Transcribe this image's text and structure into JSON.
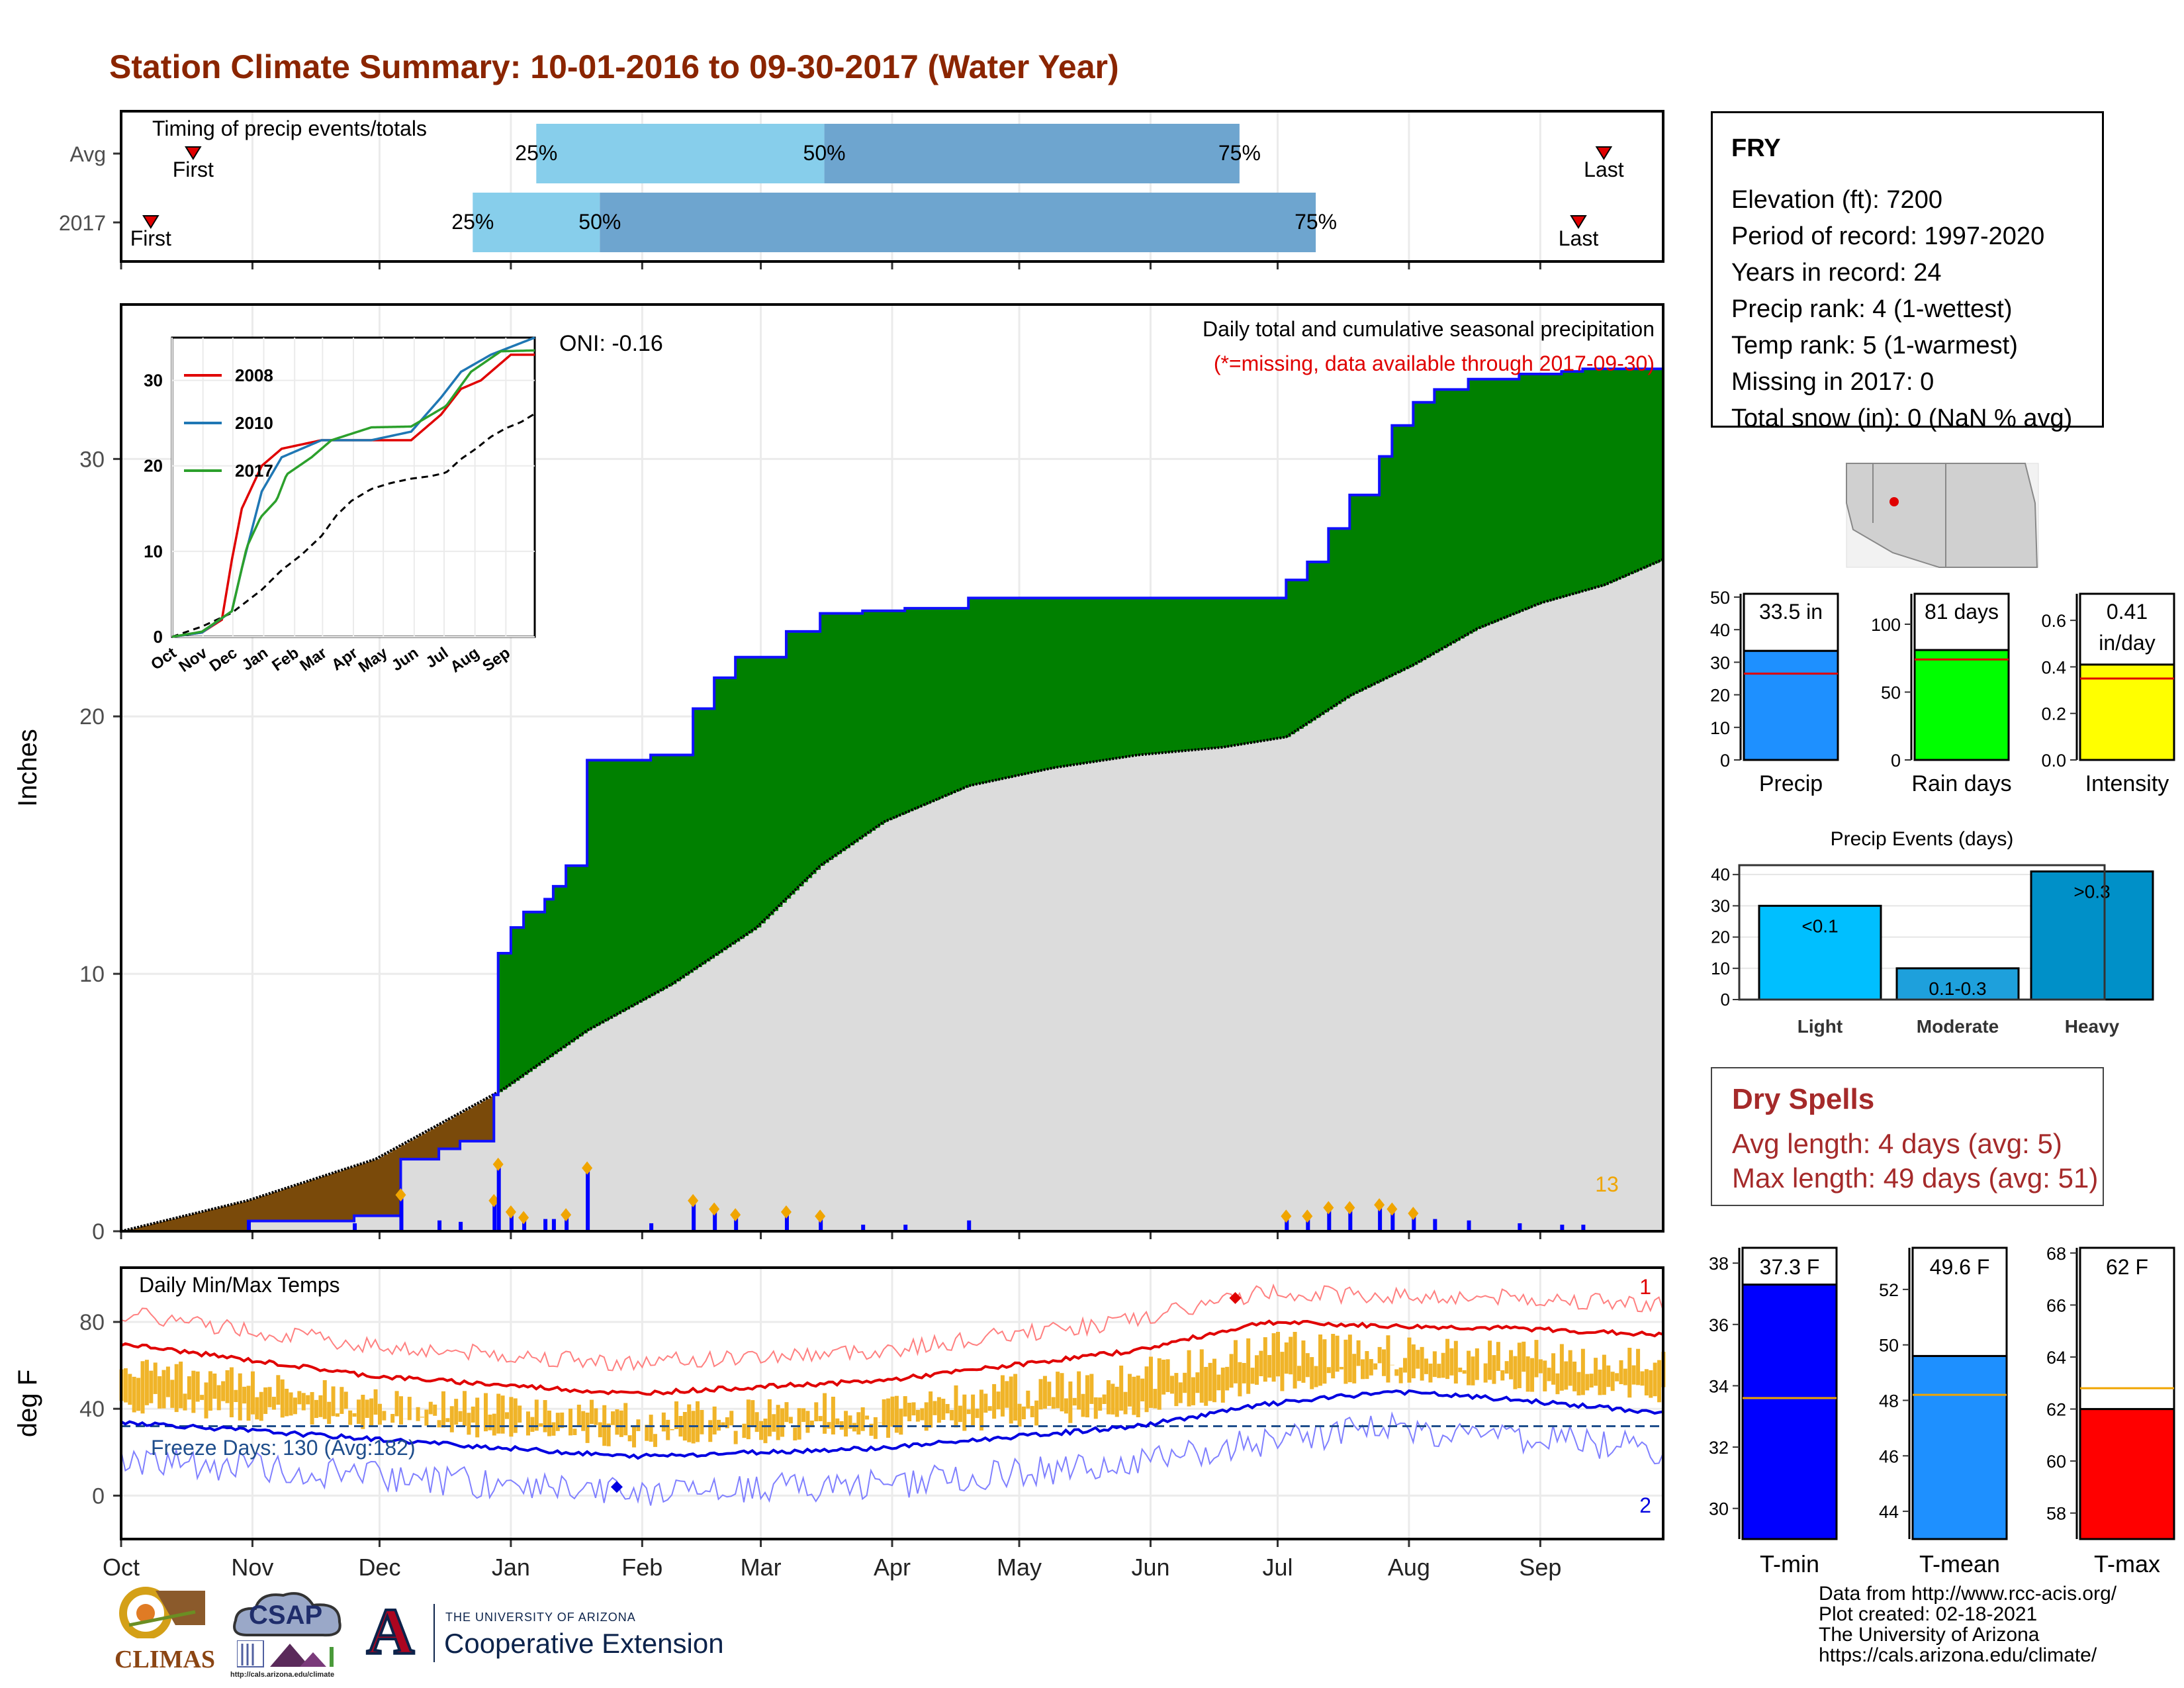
{
  "title": "Station Climate Summary: 10-01-2016 to 09-30-2017 (Water Year)",
  "months": [
    "Oct",
    "Nov",
    "Dec",
    "Jan",
    "Feb",
    "Mar",
    "Apr",
    "May",
    "Jun",
    "Jul",
    "Aug",
    "Sep"
  ],
  "colors": {
    "title": "#8b2500",
    "green": "#008000",
    "brown": "#7a4a0a",
    "grey": "#dcdcdc",
    "blue": "#0000ff",
    "orange": "#f0a500",
    "red": "#e00000",
    "light_blue_bar": "#87ceeb",
    "steel_bar": "#6ea5cf"
  },
  "timing": {
    "title": "Timing of precip events/totals",
    "rows": [
      {
        "label": "Avg",
        "first_day": 17,
        "last_day": 350,
        "p25": 98,
        "p50": 166,
        "p75": 264,
        "first_label": "First",
        "last_label": "Last",
        "p25_label": "25%",
        "p50_label": "50%",
        "p75_label": "75%"
      },
      {
        "label": "2017",
        "first_day": 7,
        "last_day": 344,
        "p25": 83,
        "p50": 113,
        "p75": 282,
        "first_label": "First",
        "last_label": "Last",
        "p25_label": "25%",
        "p50_label": "50%",
        "p75_label": "75%"
      }
    ]
  },
  "station": {
    "name": "FRY",
    "lines": [
      "Elevation (ft): 7200",
      "Period of record: 1997-2020",
      "Years in record: 24",
      "Precip rank: 4 (1-wettest)",
      "Temp rank: 5 (1-warmest)",
      "Missing in 2017: 0",
      "Total snow (in): 0 (NaN % avg)"
    ]
  },
  "precip_panel": {
    "ylabel": "Inches",
    "subtitle": "Daily total and cumulative seasonal precipitation",
    "note": "(*=missing, data available through 2017-09-30)",
    "oni": "ONI: -0.16",
    "count_label": "13",
    "y_ticks": [
      "0",
      "10",
      "20",
      "30"
    ]
  },
  "inset": {
    "legend": [
      "2008",
      "2010",
      "2017"
    ],
    "y_ticks": [
      "0",
      "10",
      "20",
      "30"
    ],
    "x_ticks": [
      "Oct",
      "Nov",
      "Dec",
      "Jan",
      "Feb",
      "Mar",
      "Apr",
      "May",
      "Jun",
      "Jul",
      "Aug",
      "Sep"
    ]
  },
  "temp_panel": {
    "ylabel": "deg F",
    "subtitle": "Daily Min/Max Temps",
    "freeze": "Freeze Days: 130 (Avg:182)",
    "count_max": "1",
    "count_min": "2",
    "y_ticks": [
      "0",
      "40",
      "80"
    ]
  },
  "precip_bars": [
    {
      "label": "Precip",
      "value_label": "33.5 in",
      "ticks": [
        "0",
        "10",
        "20",
        "30",
        "40",
        "50"
      ]
    },
    {
      "label": "Rain days",
      "value_label": "81 days",
      "ticks": [
        "0",
        "50",
        "100"
      ]
    },
    {
      "label": "Intensity",
      "value_label": "0.41 in/day",
      "ticks": [
        "0.0",
        "0.2",
        "0.4",
        "0.6"
      ]
    }
  ],
  "events": {
    "title": "Precip Events (days)",
    "ticks": [
      "0",
      "10",
      "20",
      "30",
      "40"
    ],
    "categories": [
      "Light",
      "Moderate",
      "Heavy"
    ],
    "bar_labels": [
      "<0.1",
      "0.1-0.3",
      ">0.3"
    ]
  },
  "dry": {
    "title": "Dry Spells",
    "line1": "Avg length: 4 days (avg: 5)",
    "line2": "Max length: 49 days (avg: 51)"
  },
  "temp_bars": [
    {
      "label": "T-min",
      "value_label": "37.3 F",
      "ticks": [
        "30",
        "32",
        "34",
        "36",
        "38"
      ]
    },
    {
      "label": "T-mean",
      "value_label": "49.6 F",
      "ticks": [
        "44",
        "46",
        "48",
        "50",
        "52"
      ]
    },
    {
      "label": "T-max",
      "value_label": "62 F",
      "ticks": [
        "58",
        "60",
        "62",
        "64",
        "66",
        "68"
      ]
    }
  ],
  "credits": [
    "Data from http://www.rcc-acis.org/",
    "Plot created: 02-18-2021",
    "The University of Arizona",
    "https://cals.arizona.edu/climate/"
  ],
  "logos": {
    "climas": "CLIMAS",
    "csap": "CSAP",
    "csap_url": "http://cals.arizona.edu/climate",
    "ua_small": "THE UNIVERSITY OF ARIZONA",
    "ua_big": "Cooperative Extension",
    "ua_letter": "A"
  },
  "chart_data": [
    {
      "type": "area",
      "title": "Daily total and cumulative seasonal precipitation",
      "ylabel": "Inches",
      "ylim": [
        0,
        36
      ],
      "x_unit": "day of water year (Oct 1 = 0)",
      "series": [
        {
          "name": "2017",
          "x": [
            0,
            30,
            55,
            66,
            75,
            80,
            88,
            89,
            92,
            95,
            100,
            102,
            105,
            110,
            115,
            125,
            135,
            140,
            145,
            157,
            165,
            175,
            185,
            200,
            215,
            230,
            260,
            275,
            280,
            285,
            290,
            297,
            300,
            305,
            310,
            318,
            330,
            340,
            345,
            355,
            364
          ],
          "values": [
            0,
            0.4,
            0.6,
            2.8,
            3.2,
            3.5,
            5.3,
            10.8,
            11.8,
            12.4,
            12.9,
            13.4,
            14.2,
            18.3,
            18.3,
            18.5,
            20.3,
            21.5,
            22.3,
            23.3,
            24.0,
            24.1,
            24.2,
            24.6,
            24.6,
            24.6,
            24.6,
            25.3,
            26.0,
            27.3,
            28.6,
            30.1,
            31.3,
            32.2,
            32.7,
            33.1,
            33.3,
            33.4,
            33.5,
            33.5,
            33.5
          ]
        },
        {
          "name": "Avg",
          "x": [
            0,
            30,
            60,
            90,
            110,
            130,
            150,
            165,
            180,
            200,
            220,
            240,
            260,
            275,
            290,
            305,
            320,
            335,
            350,
            364
          ],
          "values": [
            0,
            1.2,
            2.8,
            5.5,
            7.8,
            9.6,
            11.8,
            14.2,
            15.9,
            17.3,
            18.0,
            18.5,
            18.8,
            19.2,
            20.8,
            22.0,
            23.4,
            24.4,
            25.1,
            26.1
          ]
        }
      ]
    },
    {
      "type": "line",
      "title": "",
      "ylim": [
        0,
        35
      ],
      "series": [
        {
          "name": "2008",
          "x": [
            0,
            30,
            50,
            60,
            70,
            90,
            110,
            150,
            200,
            240,
            270,
            290,
            310,
            340,
            364
          ],
          "values": [
            0,
            0.5,
            2,
            9,
            15,
            20,
            22,
            23,
            23,
            23,
            26,
            29,
            30,
            33,
            33
          ]
        },
        {
          "name": "2010",
          "x": [
            0,
            30,
            60,
            70,
            90,
            110,
            130,
            150,
            200,
            240,
            270,
            290,
            320,
            364
          ],
          "values": [
            0,
            0.5,
            3,
            8,
            17,
            21,
            22,
            23,
            23,
            24,
            28,
            31,
            33,
            35
          ]
        },
        {
          "name": "2017",
          "x": [
            0,
            30,
            60,
            75,
            89,
            105,
            115,
            140,
            160,
            200,
            240,
            275,
            300,
            330,
            364
          ],
          "values": [
            0,
            0.6,
            3,
            10.5,
            14,
            16,
            19,
            21,
            23,
            24.5,
            24.6,
            27,
            31,
            33.4,
            33.5
          ]
        }
      ]
    },
    {
      "type": "line",
      "title": "Daily Min/Max Temps",
      "ylabel": "deg F",
      "ylim": [
        -20,
        105
      ],
      "series": [
        {
          "name": "Avg max",
          "x": [
            0,
            60,
            120,
            180,
            240,
            270,
            300,
            330,
            364
          ],
          "values": [
            70,
            55,
            47,
            53,
            67,
            80,
            78,
            77,
            74
          ]
        },
        {
          "name": "Avg min",
          "x": [
            0,
            60,
            120,
            180,
            240,
            270,
            300,
            330,
            364
          ],
          "values": [
            34,
            26,
            18,
            22,
            32,
            42,
            48,
            44,
            38
          ]
        }
      ]
    },
    {
      "type": "bar",
      "categories": [
        "Precip",
        "Rain days",
        "Intensity"
      ],
      "series": [
        {
          "name": "2017",
          "values": [
            33.5,
            81,
            0.41
          ]
        },
        {
          "name": "Avg",
          "values": [
            26.5,
            74,
            0.35
          ]
        }
      ]
    },
    {
      "type": "bar",
      "title": "Precip Events (days)",
      "categories": [
        "Light",
        "Moderate",
        "Heavy"
      ],
      "values": [
        30,
        10,
        41
      ]
    },
    {
      "type": "bar",
      "categories": [
        "T-min",
        "T-mean",
        "T-max"
      ],
      "series": [
        {
          "name": "2017",
          "values": [
            37.3,
            49.6,
            62
          ]
        },
        {
          "name": "Avg",
          "values": [
            33.6,
            48.2,
            62.8
          ]
        }
      ]
    }
  ]
}
